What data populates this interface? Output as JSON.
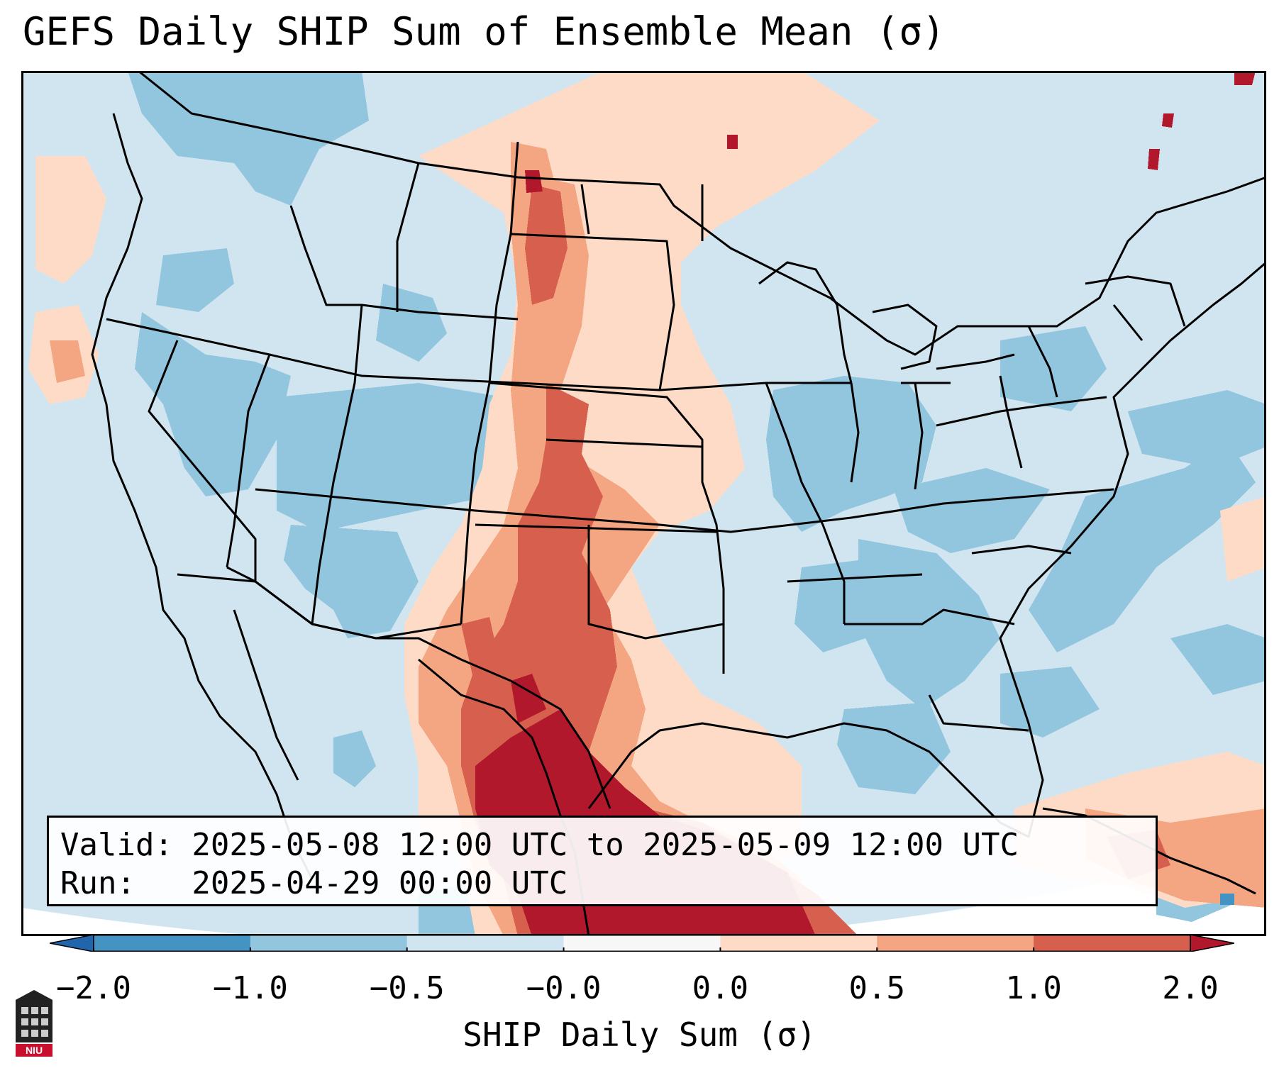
{
  "title": "GEFS Daily SHIP Sum of Ensemble Mean (σ)",
  "info": {
    "valid_line": "Valid: 2025-05-08 12:00 UTC to 2025-05-09 12:00 UTC",
    "run_line": "Run:   2025-04-29 00:00 UTC"
  },
  "colorbar": {
    "label": "SHIP Daily Sum (σ)",
    "ticks": [
      "−2.0",
      "−1.0",
      "−0.5",
      "−0.0",
      "0.0",
      "0.5",
      "1.0",
      "2.0"
    ],
    "bins": [
      {
        "range": "<-2.0",
        "color": "#2166ac"
      },
      {
        "range": "-2.0 to -1.0",
        "color": "#4393c3"
      },
      {
        "range": "-1.0 to -0.5",
        "color": "#92c5de"
      },
      {
        "range": "-0.5 to -0.0",
        "color": "#d1e5f0"
      },
      {
        "range": "-0.0 to 0.0",
        "color": "#f7f7f7"
      },
      {
        "range": "0.0 to 0.5",
        "color": "#fddbc7"
      },
      {
        "range": "0.5 to 1.0",
        "color": "#f4a582"
      },
      {
        "range": "1.0 to 2.0",
        "color": "#d6604d"
      },
      {
        "range": ">2.0",
        "color": "#b2182b"
      }
    ]
  },
  "map": {
    "projection": "Lambert conformal, CONUS",
    "background_color": "#d1e5f0",
    "features": [
      "state-borders",
      "country-borders",
      "coastlines"
    ]
  },
  "logo": {
    "text": "NIU"
  }
}
